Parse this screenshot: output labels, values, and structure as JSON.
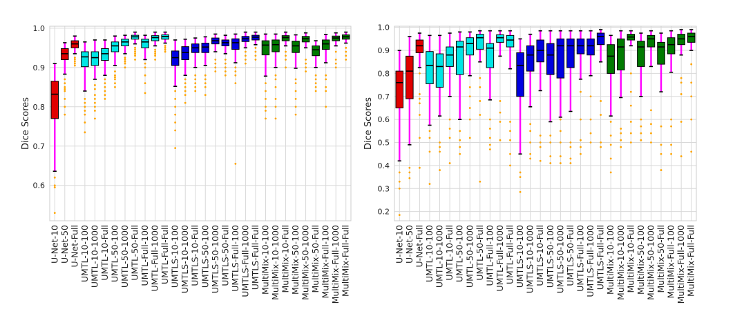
{
  "chart_data": [
    {
      "type": "box",
      "ylabel": "Dice Scores",
      "ylim": [
        0.51,
        1.005
      ],
      "yticks": [
        0.6,
        0.7,
        0.8,
        0.9,
        1.0
      ],
      "ytick_labels": [
        "0.6",
        "0.7",
        "0.8",
        "0.9",
        "1.0"
      ],
      "grid": true,
      "categories": [
        "U-Net-10",
        "U-Net-50",
        "U-Net-Full",
        "UMTL-10-100",
        "UMTL-10-1000",
        "UMTL-10-Full",
        "UMTL-50-100",
        "UMTL-50-1000",
        "UMTL-50-Full",
        "UMTL-Full-100",
        "UMTL-Full-1000",
        "UMTL-Full-Full",
        "UMTLS-10-100",
        "UMTLS-10-1000",
        "UMTLS-10-Full",
        "UMTLS-50-100",
        "UMTLS-50-1000",
        "UMTLS-50-Full",
        "UMTLS-Full-100",
        "UMTLS-Full-1000",
        "UMTLS-Full-Full",
        "MultiMix-10-100",
        "MultiMix-10-1000",
        "MultiMix-10-Full",
        "MultiMix-50-100",
        "MultiMix-50-1000",
        "MultiMix-50-Full",
        "MultiMix-Full-100",
        "MultiMix-Full-1000",
        "MultiMix-Full-Full"
      ],
      "box_colors": [
        "#e00000",
        "#e00000",
        "#e00000",
        "#00e5e5",
        "#00e5e5",
        "#00e5e5",
        "#00e5e5",
        "#00e5e5",
        "#00e5e5",
        "#00e5e5",
        "#00e5e5",
        "#00e5e5",
        "#0000e0",
        "#0000e0",
        "#0000e0",
        "#0000e0",
        "#0000e0",
        "#0000e0",
        "#0000e0",
        "#0000e0",
        "#0000e0",
        "#007a00",
        "#007a00",
        "#007a00",
        "#007a00",
        "#007a00",
        "#007a00",
        "#007a00",
        "#007a00",
        "#007a00"
      ],
      "whisker_color": "#ff00ff",
      "flier_color": "#ffa500",
      "boxes": [
        {
          "whislo": 0.636,
          "q1": 0.77,
          "med": 0.832,
          "q3": 0.865,
          "whishi": 0.91,
          "fliers": [
            0.53,
            0.595,
            0.6,
            0.62
          ]
        },
        {
          "whislo": 0.883,
          "q1": 0.92,
          "med": 0.935,
          "q3": 0.948,
          "whishi": 0.963,
          "fliers": [
            0.78,
            0.8,
            0.82,
            0.84,
            0.845,
            0.85,
            0.86,
            0.87
          ]
        },
        {
          "whislo": 0.935,
          "q1": 0.95,
          "med": 0.96,
          "q3": 0.968,
          "whishi": 0.98,
          "fliers": [
            0.905,
            0.91,
            0.915,
            0.92,
            0.925
          ]
        },
        {
          "whislo": 0.84,
          "q1": 0.902,
          "med": 0.927,
          "q3": 0.94,
          "whishi": 0.965,
          "fliers": [
            0.735,
            0.76,
            0.78,
            0.79,
            0.8,
            0.81,
            0.82
          ]
        },
        {
          "whislo": 0.87,
          "q1": 0.905,
          "med": 0.925,
          "q3": 0.94,
          "whishi": 0.97,
          "fliers": [
            0.77,
            0.79,
            0.8,
            0.81,
            0.82,
            0.83,
            0.845,
            0.855
          ]
        },
        {
          "whislo": 0.88,
          "q1": 0.918,
          "med": 0.935,
          "q3": 0.948,
          "whishi": 0.97,
          "fliers": [
            0.82,
            0.83,
            0.84,
            0.85,
            0.86,
            0.87
          ]
        },
        {
          "whislo": 0.905,
          "q1": 0.94,
          "med": 0.955,
          "q3": 0.965,
          "whishi": 0.98,
          "fliers": [
            0.85,
            0.86,
            0.87,
            0.875,
            0.88,
            0.89
          ]
        },
        {
          "whislo": 0.935,
          "q1": 0.955,
          "med": 0.965,
          "q3": 0.972,
          "whishi": 0.982,
          "fliers": [
            0.9,
            0.91,
            0.915,
            0.92,
            0.925
          ]
        },
        {
          "whislo": 0.96,
          "q1": 0.972,
          "med": 0.978,
          "q3": 0.982,
          "whishi": 0.99,
          "fliers": [
            0.92,
            0.93,
            0.935,
            0.94,
            0.945,
            0.95
          ]
        },
        {
          "whislo": 0.92,
          "q1": 0.95,
          "med": 0.965,
          "q3": 0.972,
          "whishi": 0.982,
          "fliers": [
            0.835,
            0.86,
            0.88,
            0.9,
            0.91
          ]
        },
        {
          "whislo": 0.955,
          "q1": 0.968,
          "med": 0.976,
          "q3": 0.981,
          "whishi": 0.99,
          "fliers": [
            0.92,
            0.93,
            0.935,
            0.94,
            0.945
          ]
        },
        {
          "whislo": 0.962,
          "q1": 0.972,
          "med": 0.979,
          "q3": 0.983,
          "whishi": 0.99,
          "fliers": [
            0.94,
            0.945,
            0.95,
            0.955
          ]
        },
        {
          "whislo": 0.852,
          "q1": 0.905,
          "med": 0.925,
          "q3": 0.942,
          "whishi": 0.97,
          "fliers": [
            0.695,
            0.74,
            0.76,
            0.78,
            0.8,
            0.82,
            0.84
          ]
        },
        {
          "whislo": 0.88,
          "q1": 0.92,
          "med": 0.938,
          "q3": 0.953,
          "whishi": 0.972,
          "fliers": [
            0.81,
            0.83,
            0.84,
            0.85,
            0.86,
            0.87
          ]
        },
        {
          "whislo": 0.9,
          "q1": 0.938,
          "med": 0.95,
          "q3": 0.96,
          "whishi": 0.975,
          "fliers": [
            0.84,
            0.85,
            0.86,
            0.87,
            0.88
          ]
        },
        {
          "whislo": 0.905,
          "q1": 0.938,
          "med": 0.952,
          "q3": 0.962,
          "whishi": 0.978,
          "fliers": [
            0.83,
            0.85,
            0.86,
            0.87,
            0.88
          ]
        },
        {
          "whislo": 0.94,
          "q1": 0.96,
          "med": 0.968,
          "q3": 0.975,
          "whishi": 0.985,
          "fliers": [
            0.89,
            0.9,
            0.91,
            0.92
          ]
        },
        {
          "whislo": 0.935,
          "q1": 0.955,
          "med": 0.963,
          "q3": 0.97,
          "whishi": 0.982,
          "fliers": [
            0.88,
            0.89,
            0.9,
            0.91,
            0.92
          ]
        },
        {
          "whislo": 0.912,
          "q1": 0.946,
          "med": 0.963,
          "q3": 0.973,
          "whishi": 0.985,
          "fliers": [
            0.655,
            0.86,
            0.88,
            0.89,
            0.9
          ]
        },
        {
          "whislo": 0.95,
          "q1": 0.966,
          "med": 0.973,
          "q3": 0.979,
          "whishi": 0.99,
          "fliers": [
            0.91,
            0.92,
            0.93,
            0.94
          ]
        },
        {
          "whislo": 0.958,
          "q1": 0.97,
          "med": 0.977,
          "q3": 0.982,
          "whishi": 0.99,
          "fliers": [
            0.92,
            0.93,
            0.94,
            0.95
          ]
        },
        {
          "whislo": 0.878,
          "q1": 0.932,
          "med": 0.957,
          "q3": 0.968,
          "whishi": 0.985,
          "fliers": [
            0.77,
            0.79,
            0.8,
            0.82,
            0.84,
            0.86
          ]
        },
        {
          "whislo": 0.9,
          "q1": 0.94,
          "med": 0.958,
          "q3": 0.97,
          "whishi": 0.985,
          "fliers": [
            0.77,
            0.8,
            0.82,
            0.85,
            0.87,
            0.88
          ]
        },
        {
          "whislo": 0.955,
          "q1": 0.968,
          "med": 0.976,
          "q3": 0.981,
          "whishi": 0.99,
          "fliers": [
            0.9,
            0.92,
            0.93,
            0.94
          ]
        },
        {
          "whislo": 0.898,
          "q1": 0.938,
          "med": 0.955,
          "q3": 0.967,
          "whishi": 0.983,
          "fliers": [
            0.78,
            0.8,
            0.82,
            0.84,
            0.86,
            0.87
          ]
        },
        {
          "whislo": 0.95,
          "q1": 0.965,
          "med": 0.973,
          "q3": 0.979,
          "whishi": 0.988,
          "fliers": [
            0.89,
            0.9,
            0.91,
            0.92
          ]
        },
        {
          "whislo": 0.9,
          "q1": 0.93,
          "med": 0.945,
          "q3": 0.955,
          "whishi": 0.968,
          "fliers": [
            0.84,
            0.85,
            0.86,
            0.87,
            0.88
          ]
        },
        {
          "whislo": 0.912,
          "q1": 0.946,
          "med": 0.96,
          "q3": 0.97,
          "whishi": 0.984,
          "fliers": [
            0.8,
            0.84,
            0.85,
            0.87,
            0.88
          ]
        },
        {
          "whislo": 0.955,
          "q1": 0.968,
          "med": 0.975,
          "q3": 0.98,
          "whishi": 0.988,
          "fliers": [
            0.9,
            0.91,
            0.92,
            0.94
          ]
        },
        {
          "whislo": 0.962,
          "q1": 0.972,
          "med": 0.978,
          "q3": 0.983,
          "whishi": 0.99,
          "fliers": [
            0.92,
            0.93,
            0.94,
            0.95
          ]
        }
      ]
    },
    {
      "type": "box",
      "ylabel": "Dice Scores",
      "ylim": [
        0.16,
        1.005
      ],
      "yticks": [
        0.2,
        0.3,
        0.4,
        0.5,
        0.6,
        0.7,
        0.8,
        0.9,
        1.0
      ],
      "ytick_labels": [
        "0.2",
        "0.3",
        "0.4",
        "0.5",
        "0.6",
        "0.7",
        "0.8",
        "0.9",
        "1.0"
      ],
      "grid": true,
      "categories": [
        "U-Net-10",
        "U-Net-50",
        "U-Net-Full",
        "UMTL-10-100",
        "UMTL-10-1000",
        "UMTL-10-Full",
        "UMTL-50-100",
        "UMTL-50-1000",
        "UMTL-50-Full",
        "UMTL-Full-100",
        "UMTL-Full-1000",
        "UMTL-Full-Full",
        "UMTLS-10-100",
        "UMTLS-10-1000",
        "UMTLS-10-Full",
        "UMTLS-50-100",
        "UMTLS-50-1000",
        "UMTLS-50-Full",
        "UMTLS-Full-100",
        "UMTLS-Full-1000",
        "UMTLS-Full-Full",
        "MultiMix-10-100",
        "MultiMix-10-1000",
        "MultiMix-10-Full",
        "MultiMix-50-100",
        "MultiMix-50-1000",
        "MultiMix-50-Full",
        "MultiMix-Full-100",
        "MultiMix-Full-1000",
        "MultiMix-Full-Full"
      ],
      "box_colors": [
        "#e00000",
        "#e00000",
        "#e00000",
        "#00e5e5",
        "#00e5e5",
        "#00e5e5",
        "#00e5e5",
        "#00e5e5",
        "#00e5e5",
        "#00e5e5",
        "#00e5e5",
        "#00e5e5",
        "#0000e0",
        "#0000e0",
        "#0000e0",
        "#0000e0",
        "#0000e0",
        "#0000e0",
        "#0000e0",
        "#0000e0",
        "#0000e0",
        "#007a00",
        "#007a00",
        "#007a00",
        "#007a00",
        "#007a00",
        "#007a00",
        "#007a00",
        "#007a00",
        "#007a00"
      ],
      "whisker_color": "#ff00ff",
      "flier_color": "#ffa500",
      "boxes": [
        {
          "whislo": 0.42,
          "q1": 0.65,
          "med": 0.76,
          "q3": 0.81,
          "whishi": 0.9,
          "fliers": [
            0.185,
            0.3,
            0.33,
            0.37
          ]
        },
        {
          "whislo": 0.49,
          "q1": 0.69,
          "med": 0.81,
          "q3": 0.875,
          "whishi": 0.96,
          "fliers": [
            0.345,
            0.37,
            0.39
          ]
        },
        {
          "whislo": 0.825,
          "q1": 0.89,
          "med": 0.92,
          "q3": 0.945,
          "whishi": 0.975,
          "fliers": [
            0.39,
            0.52,
            0.62,
            0.67,
            0.69,
            0.71,
            0.8
          ]
        },
        {
          "whislo": 0.575,
          "q1": 0.755,
          "med": 0.835,
          "q3": 0.895,
          "whishi": 0.965,
          "fliers": [
            0.32,
            0.46,
            0.52,
            0.55
          ]
        },
        {
          "whislo": 0.615,
          "q1": 0.74,
          "med": 0.83,
          "q3": 0.885,
          "whishi": 0.965,
          "fliers": [
            0.38,
            0.46,
            0.48,
            0.5
          ]
        },
        {
          "whislo": 0.7,
          "q1": 0.83,
          "med": 0.88,
          "q3": 0.915,
          "whishi": 0.975,
          "fliers": [
            0.41,
            0.52,
            0.56,
            0.6
          ]
        },
        {
          "whislo": 0.6,
          "q1": 0.795,
          "med": 0.915,
          "q3": 0.94,
          "whishi": 0.98,
          "fliers": [
            0.45,
            0.48,
            0.51,
            0.55
          ]
        },
        {
          "whislo": 0.79,
          "q1": 0.88,
          "med": 0.93,
          "q3": 0.955,
          "whishi": 0.98,
          "fliers": [
            0.52,
            0.6,
            0.65,
            0.7,
            0.74
          ]
        },
        {
          "whislo": 0.85,
          "q1": 0.905,
          "med": 0.955,
          "q3": 0.97,
          "whishi": 0.985,
          "fliers": [
            0.33,
            0.62,
            0.68,
            0.74,
            0.78
          ]
        },
        {
          "whislo": 0.685,
          "q1": 0.825,
          "med": 0.91,
          "q3": 0.93,
          "whishi": 0.985,
          "fliers": [
            0.47,
            0.49,
            0.52,
            0.56,
            0.6
          ]
        },
        {
          "whislo": 0.875,
          "q1": 0.935,
          "med": 0.955,
          "q3": 0.968,
          "whishi": 0.985,
          "fliers": [
            0.51,
            0.59,
            0.63,
            0.68
          ]
        },
        {
          "whislo": 0.82,
          "q1": 0.915,
          "med": 0.945,
          "q3": 0.965,
          "whishi": 0.985,
          "fliers": [
            0.4,
            0.45,
            0.51,
            0.55,
            0.59
          ]
        },
        {
          "whislo": 0.45,
          "q1": 0.7,
          "med": 0.835,
          "q3": 0.89,
          "whishi": 0.95,
          "fliers": [
            0.285,
            0.35,
            0.37
          ]
        },
        {
          "whislo": 0.655,
          "q1": 0.81,
          "med": 0.88,
          "q3": 0.92,
          "whishi": 0.97,
          "fliers": [
            0.43,
            0.45,
            0.5,
            0.55,
            0.58
          ]
        },
        {
          "whislo": 0.725,
          "q1": 0.85,
          "med": 0.9,
          "q3": 0.945,
          "whishi": 0.985,
          "fliers": [
            0.42,
            0.48,
            0.5,
            0.53
          ]
        },
        {
          "whislo": 0.59,
          "q1": 0.795,
          "med": 0.88,
          "q3": 0.93,
          "whishi": 0.985,
          "fliers": [
            0.41,
            0.44,
            0.5,
            0.53
          ]
        },
        {
          "whislo": 0.61,
          "q1": 0.78,
          "med": 0.92,
          "q3": 0.95,
          "whishi": 0.985,
          "fliers": [
            0.41,
            0.44,
            0.5,
            0.55,
            0.6
          ]
        },
        {
          "whislo": 0.635,
          "q1": 0.825,
          "med": 0.92,
          "q3": 0.95,
          "whishi": 0.985,
          "fliers": [
            0.41,
            0.43,
            0.48,
            0.5
          ]
        },
        {
          "whislo": 0.775,
          "q1": 0.885,
          "med": 0.92,
          "q3": 0.95,
          "whishi": 0.985,
          "fliers": [
            0.45,
            0.48,
            0.51,
            0.6,
            0.72
          ]
        },
        {
          "whislo": 0.79,
          "q1": 0.88,
          "med": 0.92,
          "q3": 0.95,
          "whishi": 0.985,
          "fliers": [
            0.5,
            0.54,
            0.6,
            0.7
          ]
        },
        {
          "whislo": 0.85,
          "q1": 0.925,
          "med": 0.96,
          "q3": 0.975,
          "whishi": 0.99,
          "fliers": [
            0.48,
            0.5,
            0.62,
            0.68
          ]
        },
        {
          "whislo": 0.615,
          "q1": 0.8,
          "med": 0.875,
          "q3": 0.925,
          "whishi": 0.965,
          "fliers": [
            0.37,
            0.43,
            0.49,
            0.53,
            0.59
          ]
        },
        {
          "whislo": 0.695,
          "q1": 0.815,
          "med": 0.915,
          "q3": 0.95,
          "whishi": 0.985,
          "fliers": [
            0.48,
            0.51,
            0.54,
            0.56
          ]
        },
        {
          "whislo": 0.92,
          "q1": 0.945,
          "med": 0.958,
          "q3": 0.97,
          "whishi": 0.985,
          "fliers": [
            0.5,
            0.54,
            0.59,
            0.66,
            0.72,
            0.8
          ]
        },
        {
          "whislo": 0.7,
          "q1": 0.83,
          "med": 0.915,
          "q3": 0.94,
          "whishi": 0.975,
          "fliers": [
            0.51,
            0.54,
            0.57,
            0.6
          ]
        },
        {
          "whislo": 0.83,
          "q1": 0.915,
          "med": 0.95,
          "q3": 0.965,
          "whishi": 0.985,
          "fliers": [
            0.5,
            0.54,
            0.58,
            0.64
          ]
        },
        {
          "whislo": 0.72,
          "q1": 0.84,
          "med": 0.915,
          "q3": 0.935,
          "whishi": 0.975,
          "fliers": [
            0.38,
            0.45,
            0.49,
            0.57
          ]
        },
        {
          "whislo": 0.805,
          "q1": 0.885,
          "med": 0.925,
          "q3": 0.955,
          "whishi": 0.985,
          "fliers": [
            0.45,
            0.49,
            0.57,
            0.6
          ]
        },
        {
          "whislo": 0.88,
          "q1": 0.925,
          "med": 0.95,
          "q3": 0.97,
          "whishi": 0.99,
          "fliers": [
            0.44,
            0.59,
            0.71,
            0.76,
            0.78
          ]
        },
        {
          "whislo": 0.9,
          "q1": 0.935,
          "med": 0.96,
          "q3": 0.975,
          "whishi": 0.99,
          "fliers": [
            0.46,
            0.6,
            0.7,
            0.76,
            0.84
          ]
        }
      ]
    }
  ]
}
